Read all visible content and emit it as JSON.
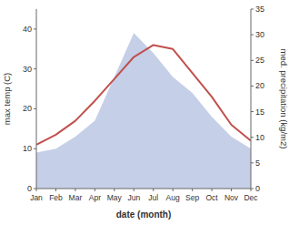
{
  "chart_data": {
    "type": "line",
    "xlabel": "date (month)",
    "ylabel": "max temp (C)",
    "y2label": "med. precipitation (kg/m2)",
    "categories": [
      "Jan",
      "Feb",
      "Mar",
      "Apr",
      "May",
      "Jun",
      "Jul",
      "Aug",
      "Sep",
      "Oct",
      "Nov",
      "Dec"
    ],
    "series": [
      {
        "type": "area",
        "color": "#c5cfe8",
        "values": [
          9,
          10,
          13,
          17,
          28,
          39,
          34,
          28,
          24,
          18,
          13,
          10
        ]
      },
      {
        "type": "line",
        "color": "#c0504d",
        "values": [
          11,
          13.5,
          17,
          22,
          27.5,
          33,
          36,
          35,
          29,
          23,
          16,
          12
        ]
      }
    ],
    "ylim": [
      0,
      45
    ],
    "yticks": [
      0,
      10,
      20,
      30,
      40
    ],
    "y2lim": [
      0,
      35
    ],
    "y2ticks": [
      0,
      5,
      10,
      15,
      20,
      25,
      30,
      35
    ],
    "grid": false
  }
}
